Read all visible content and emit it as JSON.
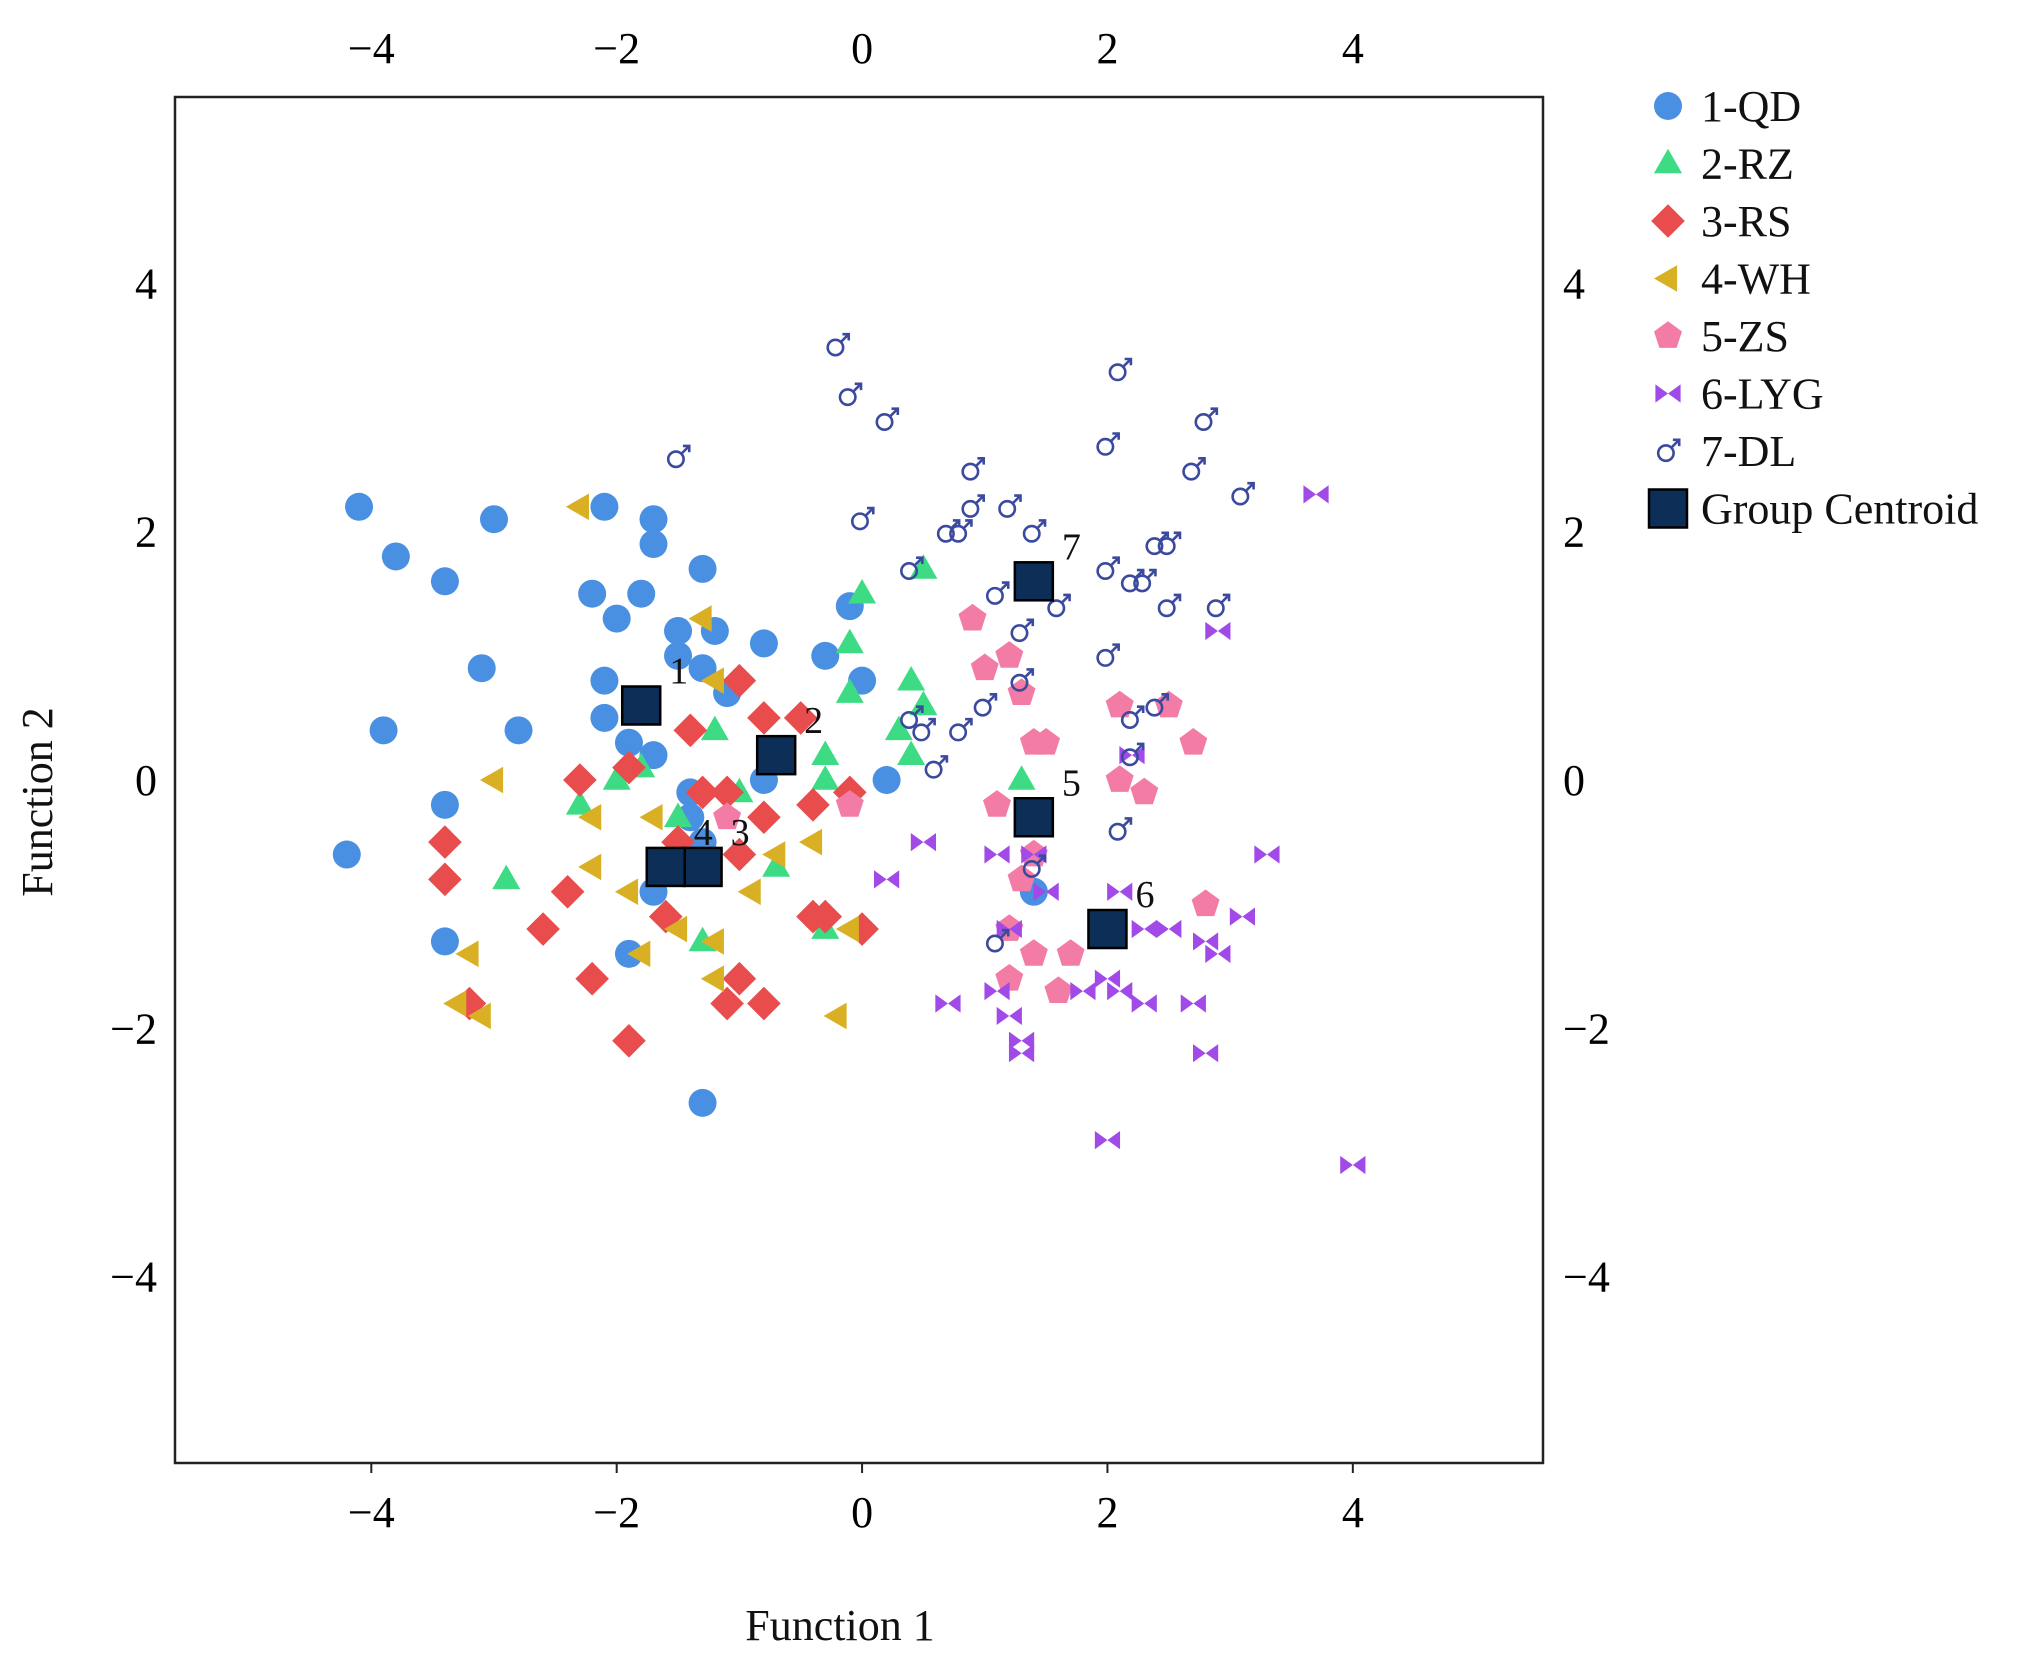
{
  "chart_data": {
    "type": "scatter",
    "title": "",
    "xlabel": "Function 1",
    "ylabel": "Function 2",
    "xlim": [
      -5.6,
      5.55
    ],
    "ylim": [
      -5.5,
      5.5
    ],
    "xticks": [
      -4,
      -2,
      0,
      2,
      4
    ],
    "yticks": [
      -4,
      -2,
      0,
      2,
      4
    ],
    "xtick_labels": [
      "−4",
      "−2",
      "0",
      "2",
      "4"
    ],
    "ytick_labels": [
      "−4",
      "−2",
      "0",
      "2",
      "4"
    ],
    "legend_position": "right",
    "series": [
      {
        "name": "1-QD",
        "marker": "circle",
        "color": "#4a90e2",
        "points": [
          [
            -4.1,
            2.2
          ],
          [
            -3.8,
            1.8
          ],
          [
            -3.4,
            1.6
          ],
          [
            -3.0,
            2.1
          ],
          [
            -2.1,
            2.2
          ],
          [
            -1.7,
            2.1
          ],
          [
            -1.3,
            1.7
          ],
          [
            -1.7,
            1.9
          ],
          [
            -2.2,
            1.5
          ],
          [
            -1.8,
            1.5
          ],
          [
            -2.0,
            1.3
          ],
          [
            -1.5,
            1.2
          ],
          [
            -1.2,
            1.2
          ],
          [
            -0.8,
            1.1
          ],
          [
            -1.5,
            1.0
          ],
          [
            -1.3,
            0.9
          ],
          [
            -3.1,
            0.9
          ],
          [
            -2.1,
            0.8
          ],
          [
            -1.1,
            0.7
          ],
          [
            -2.1,
            0.5
          ],
          [
            -3.9,
            0.4
          ],
          [
            -2.8,
            0.4
          ],
          [
            -1.9,
            0.3
          ],
          [
            -1.7,
            0.2
          ],
          [
            -0.3,
            1.0
          ],
          [
            -0.1,
            1.4
          ],
          [
            0.0,
            0.8
          ],
          [
            0.2,
            0.0
          ],
          [
            -1.4,
            -0.1
          ],
          [
            -3.4,
            -0.2
          ],
          [
            -1.4,
            -0.3
          ],
          [
            -1.3,
            -0.5
          ],
          [
            -1.7,
            -0.9
          ],
          [
            -4.2,
            -0.6
          ],
          [
            -3.4,
            -1.3
          ],
          [
            -1.9,
            -1.4
          ],
          [
            -1.3,
            -2.6
          ],
          [
            1.4,
            -0.9
          ],
          [
            -0.8,
            0.0
          ]
        ]
      },
      {
        "name": "2-RZ",
        "marker": "triangle",
        "color": "#3ddc84",
        "points": [
          [
            0.0,
            1.5
          ],
          [
            0.5,
            1.7
          ],
          [
            -0.1,
            1.1
          ],
          [
            -0.1,
            0.7
          ],
          [
            0.4,
            0.8
          ],
          [
            0.5,
            0.6
          ],
          [
            0.3,
            0.4
          ],
          [
            0.4,
            0.2
          ],
          [
            -0.3,
            0.2
          ],
          [
            -0.3,
            0.0
          ],
          [
            1.3,
            0.0
          ],
          [
            -1.2,
            0.4
          ],
          [
            -1.8,
            0.1
          ],
          [
            -2.0,
            0.0
          ],
          [
            -2.3,
            -0.2
          ],
          [
            -1.0,
            -0.1
          ],
          [
            -0.7,
            -0.7
          ],
          [
            -0.3,
            -1.2
          ],
          [
            -1.3,
            -1.3
          ],
          [
            -2.9,
            -0.8
          ],
          [
            -1.5,
            -0.3
          ]
        ]
      },
      {
        "name": "3-RS",
        "marker": "diamond",
        "color": "#e84c4c",
        "points": [
          [
            -1.0,
            0.8
          ],
          [
            -0.8,
            0.5
          ],
          [
            -0.5,
            0.5
          ],
          [
            -1.4,
            0.4
          ],
          [
            -2.3,
            0.0
          ],
          [
            -1.9,
            0.1
          ],
          [
            -1.3,
            -0.1
          ],
          [
            -1.1,
            -0.1
          ],
          [
            -0.8,
            -0.3
          ],
          [
            -0.4,
            -0.2
          ],
          [
            -0.1,
            -0.1
          ],
          [
            -1.5,
            -0.5
          ],
          [
            -1.0,
            -0.6
          ],
          [
            -3.4,
            -0.5
          ],
          [
            -3.4,
            -0.8
          ],
          [
            -2.4,
            -0.9
          ],
          [
            -2.6,
            -1.2
          ],
          [
            -1.6,
            -1.1
          ],
          [
            -0.4,
            -1.1
          ],
          [
            -0.3,
            -1.1
          ],
          [
            0.0,
            -1.2
          ],
          [
            -1.0,
            -1.6
          ],
          [
            -1.1,
            -1.8
          ],
          [
            -0.8,
            -1.8
          ],
          [
            -2.2,
            -1.6
          ],
          [
            -3.2,
            -1.8
          ],
          [
            -1.9,
            -2.1
          ]
        ]
      },
      {
        "name": "4-WH",
        "marker": "triangle-left",
        "color": "#d9b024",
        "points": [
          [
            -2.3,
            2.2
          ],
          [
            -1.3,
            1.3
          ],
          [
            -1.2,
            0.8
          ],
          [
            -3.0,
            0.0
          ],
          [
            -2.2,
            -0.3
          ],
          [
            -1.7,
            -0.3
          ],
          [
            -0.7,
            -0.6
          ],
          [
            -0.4,
            -0.5
          ],
          [
            -2.2,
            -0.7
          ],
          [
            -1.9,
            -0.9
          ],
          [
            -0.9,
            -0.9
          ],
          [
            -1.5,
            -1.2
          ],
          [
            -1.2,
            -1.3
          ],
          [
            -0.1,
            -1.2
          ],
          [
            -3.2,
            -1.4
          ],
          [
            -1.8,
            -1.4
          ],
          [
            -1.2,
            -1.6
          ],
          [
            -3.3,
            -1.8
          ],
          [
            -3.1,
            -1.9
          ],
          [
            -0.2,
            -1.9
          ]
        ]
      },
      {
        "name": "5-ZS",
        "marker": "pentagon",
        "color": "#f27ca6",
        "points": [
          [
            0.9,
            1.3
          ],
          [
            1.0,
            0.9
          ],
          [
            1.2,
            1.0
          ],
          [
            1.3,
            0.7
          ],
          [
            1.4,
            0.3
          ],
          [
            1.5,
            0.3
          ],
          [
            2.1,
            0.6
          ],
          [
            2.5,
            0.6
          ],
          [
            2.7,
            0.3
          ],
          [
            2.1,
            0.0
          ],
          [
            2.3,
            -0.1
          ],
          [
            1.1,
            -0.2
          ],
          [
            1.4,
            -0.6
          ],
          [
            1.3,
            -0.8
          ],
          [
            2.8,
            -1.0
          ],
          [
            1.2,
            -1.2
          ],
          [
            1.4,
            -1.4
          ],
          [
            1.7,
            -1.4
          ],
          [
            1.2,
            -1.6
          ],
          [
            1.6,
            -1.7
          ],
          [
            -1.1,
            -0.3
          ],
          [
            -0.1,
            -0.2
          ]
        ]
      },
      {
        "name": "6-LYG",
        "marker": "bowtie",
        "color": "#a24ae8",
        "points": [
          [
            3.7,
            2.3
          ],
          [
            2.9,
            1.2
          ],
          [
            2.2,
            0.2
          ],
          [
            3.3,
            -0.6
          ],
          [
            0.5,
            -0.5
          ],
          [
            1.1,
            -0.6
          ],
          [
            1.4,
            -0.6
          ],
          [
            0.2,
            -0.8
          ],
          [
            1.5,
            -0.9
          ],
          [
            2.1,
            -0.9
          ],
          [
            2.3,
            -1.2
          ],
          [
            2.5,
            -1.2
          ],
          [
            2.8,
            -1.3
          ],
          [
            3.1,
            -1.1
          ],
          [
            2.9,
            -1.4
          ],
          [
            1.2,
            -1.2
          ],
          [
            1.1,
            -1.7
          ],
          [
            1.8,
            -1.7
          ],
          [
            2.0,
            -1.6
          ],
          [
            2.1,
            -1.7
          ],
          [
            2.3,
            -1.8
          ],
          [
            0.7,
            -1.8
          ],
          [
            2.7,
            -1.8
          ],
          [
            1.2,
            -1.9
          ],
          [
            1.3,
            -2.1
          ],
          [
            1.3,
            -2.2
          ],
          [
            2.8,
            -2.2
          ],
          [
            2.0,
            -2.9
          ],
          [
            4.0,
            -3.1
          ]
        ]
      },
      {
        "name": "7-DL",
        "marker": "male",
        "color": "#3b4a9e",
        "points": [
          [
            -0.2,
            3.5
          ],
          [
            -0.1,
            3.1
          ],
          [
            0.2,
            2.9
          ],
          [
            -1.5,
            2.6
          ],
          [
            2.1,
            3.3
          ],
          [
            2.8,
            2.9
          ],
          [
            0.9,
            2.5
          ],
          [
            2.0,
            2.7
          ],
          [
            2.7,
            2.5
          ],
          [
            3.1,
            2.3
          ],
          [
            0.9,
            2.2
          ],
          [
            1.2,
            2.2
          ],
          [
            0.7,
            2.0
          ],
          [
            0.8,
            2.0
          ],
          [
            1.4,
            2.0
          ],
          [
            2.4,
            1.9
          ],
          [
            2.5,
            1.9
          ],
          [
            0.0,
            2.1
          ],
          [
            0.4,
            1.7
          ],
          [
            2.0,
            1.7
          ],
          [
            2.2,
            1.6
          ],
          [
            2.3,
            1.6
          ],
          [
            1.1,
            1.5
          ],
          [
            1.6,
            1.4
          ],
          [
            2.5,
            1.4
          ],
          [
            2.9,
            1.4
          ],
          [
            1.3,
            1.2
          ],
          [
            2.0,
            1.0
          ],
          [
            1.3,
            0.8
          ],
          [
            1.0,
            0.6
          ],
          [
            2.4,
            0.6
          ],
          [
            2.2,
            0.5
          ],
          [
            0.4,
            0.5
          ],
          [
            0.5,
            0.4
          ],
          [
            0.8,
            0.4
          ],
          [
            2.2,
            0.2
          ],
          [
            0.6,
            0.1
          ],
          [
            2.1,
            -0.4
          ],
          [
            1.4,
            -0.7
          ],
          [
            1.1,
            -1.3
          ]
        ]
      }
    ],
    "centroids": {
      "name": "Group Centroid",
      "marker": "square",
      "color": "#0c2e57",
      "points": [
        {
          "label": "1",
          "x": -1.8,
          "y": 0.6
        },
        {
          "label": "2",
          "x": -0.7,
          "y": 0.2
        },
        {
          "label": "3",
          "x": -1.3,
          "y": -0.7
        },
        {
          "label": "4",
          "x": -1.6,
          "y": -0.7
        },
        {
          "label": "5",
          "x": 1.4,
          "y": -0.3
        },
        {
          "label": "6",
          "x": 2.0,
          "y": -1.2
        },
        {
          "label": "7",
          "x": 1.4,
          "y": 1.6
        }
      ]
    }
  }
}
